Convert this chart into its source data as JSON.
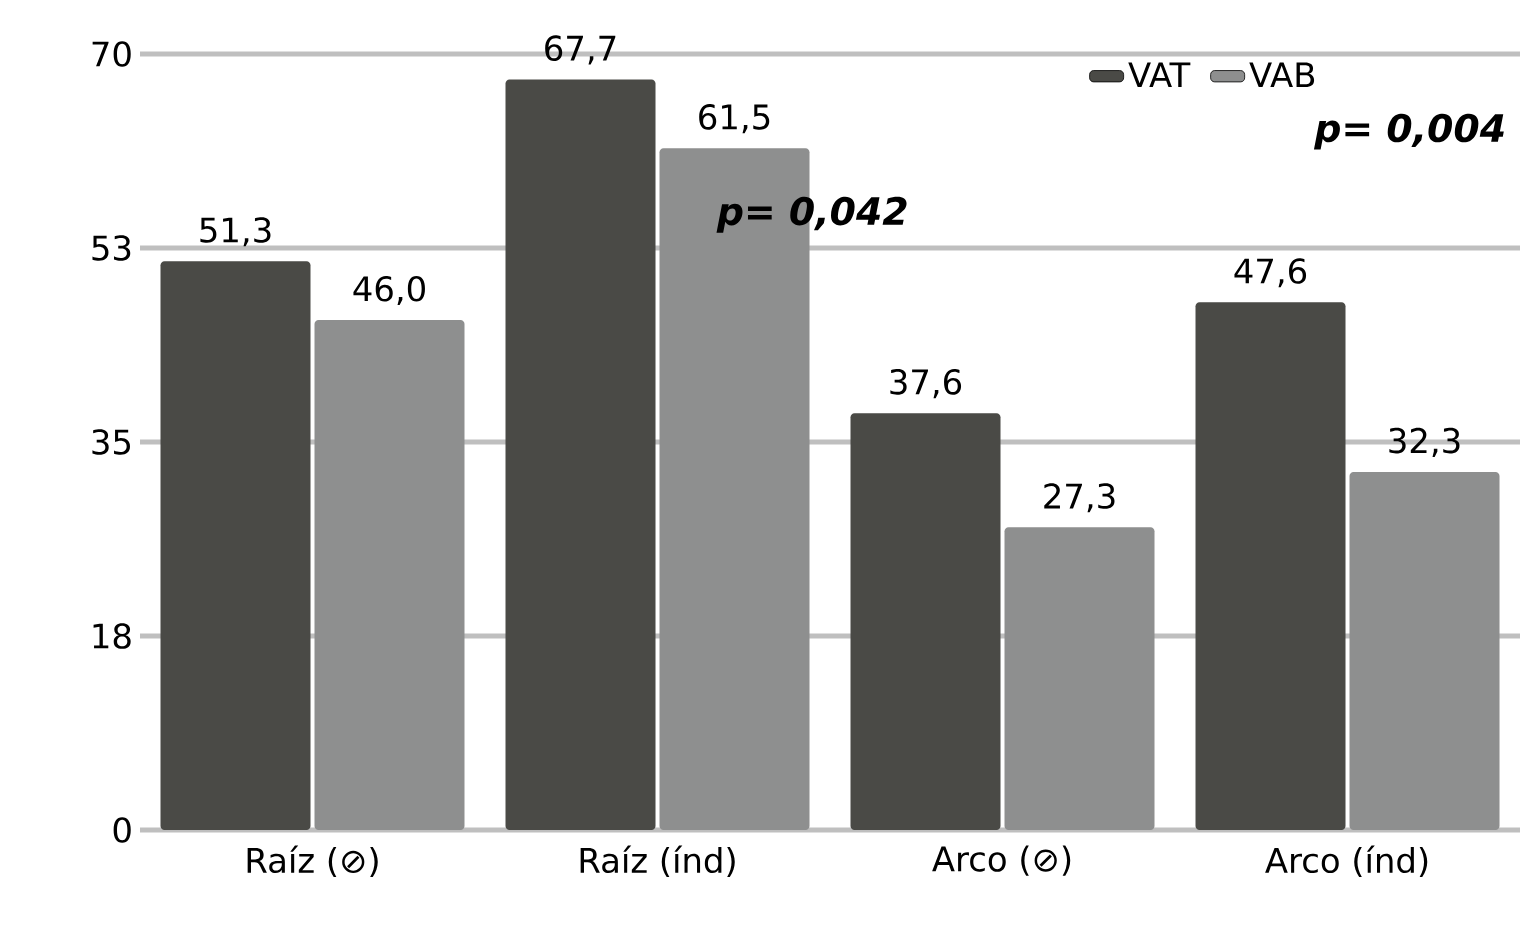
{
  "chart_data": {
    "type": "bar",
    "categories": [
      "Raíz (⊘)",
      "Raíz (índ)",
      "Arco (⊘)",
      "Arco (índ)"
    ],
    "series": [
      {
        "name": "VAT",
        "color": "#4a4a46",
        "values": [
          51.3,
          67.7,
          37.6,
          47.6
        ],
        "value_labels": [
          "51,3",
          "67,7",
          "37,6",
          "47,6"
        ]
      },
      {
        "name": "VAB",
        "color": "#8e8f8f",
        "values": [
          46.0,
          61.5,
          27.3,
          32.3
        ],
        "value_labels": [
          "46,0",
          "61,5",
          "27,3",
          "32,3"
        ]
      }
    ],
    "ylim": [
      0,
      70
    ],
    "yticks": [
      0,
      {
        "value": 17.5,
        "label": "18"
      },
      35,
      {
        "value": 52.5,
        "label": "53"
      },
      70
    ],
    "grid": "y",
    "legend": "top right",
    "annotations": [
      "p= 0,042",
      "p= 0,004"
    ]
  }
}
